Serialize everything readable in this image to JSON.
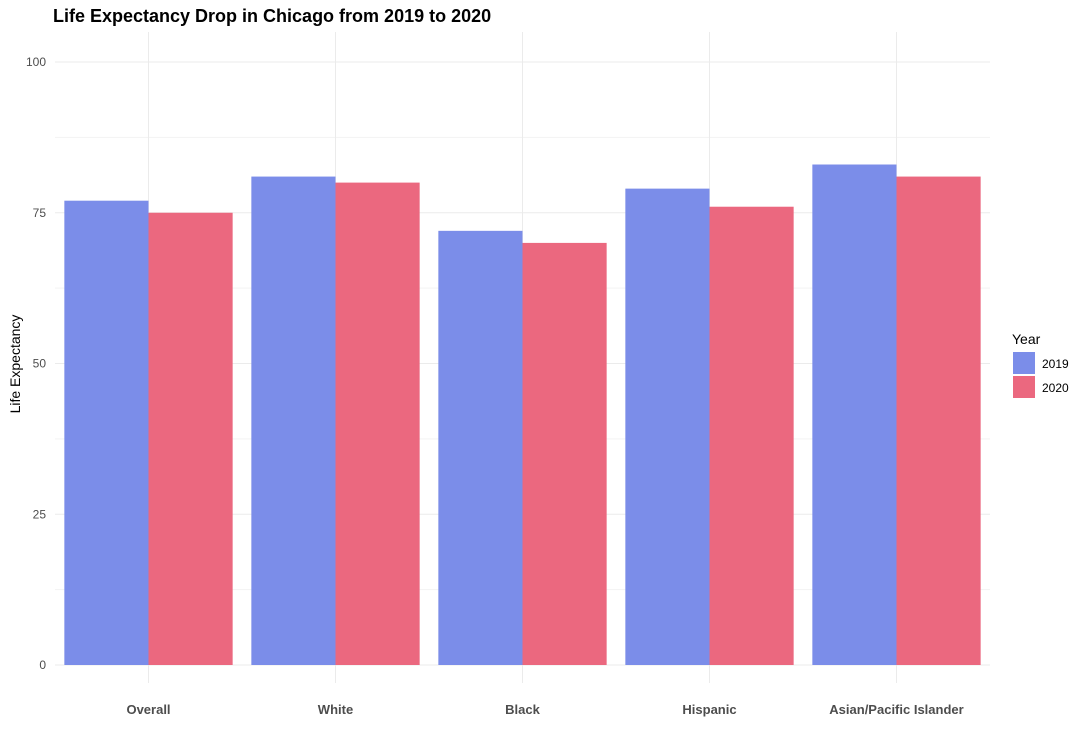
{
  "chart_data": {
    "type": "bar",
    "title": "Life Expectancy Drop in Chicago from 2019 to 2020",
    "xlabel": "",
    "ylabel": "Life Expectancy",
    "ylim": [
      0,
      103
    ],
    "yticks": [
      0,
      25,
      50,
      75,
      100
    ],
    "grid": true,
    "legend": {
      "title": "Year",
      "placement": "right"
    },
    "categories": [
      "Overall",
      "White",
      "Black",
      "Hispanic",
      "Asian/Pacific Islander"
    ],
    "series": [
      {
        "name": "2019",
        "color": "#7b8de9",
        "values": [
          77,
          81,
          72,
          79,
          83
        ]
      },
      {
        "name": "2020",
        "color": "#eb687f",
        "values": [
          75,
          80,
          70,
          76,
          81
        ]
      }
    ]
  }
}
